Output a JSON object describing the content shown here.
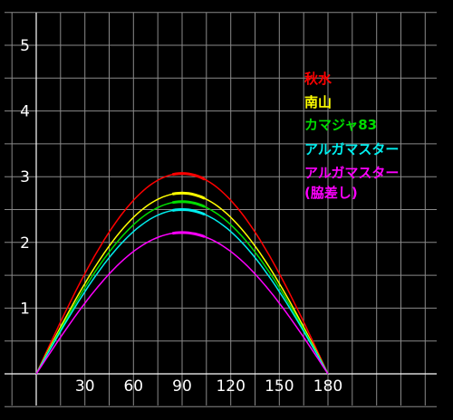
{
  "chart_data": {
    "type": "line",
    "title": "",
    "xlabel": "",
    "ylabel": "",
    "xlim": [
      0,
      180
    ],
    "ylim": [
      0,
      5
    ],
    "x_ticks": [
      {
        "value": 30,
        "label": "30"
      },
      {
        "value": 60,
        "label": "60"
      },
      {
        "value": 90,
        "label": "90"
      },
      {
        "value": 120,
        "label": "120"
      },
      {
        "value": 150,
        "label": "150"
      },
      {
        "value": 180,
        "label": "180"
      }
    ],
    "y_ticks": [
      {
        "value": 1,
        "label": "1"
      },
      {
        "value": 2,
        "label": "2"
      },
      {
        "value": 3,
        "label": "3"
      },
      {
        "value": 4,
        "label": "4"
      },
      {
        "value": 5,
        "label": "5"
      }
    ],
    "grid": true,
    "legend_position": "right",
    "x": [
      0,
      10,
      20,
      30,
      40,
      50,
      60,
      70,
      80,
      90,
      100,
      110,
      120,
      130,
      140,
      150,
      160,
      170,
      180
    ],
    "series": [
      {
        "name": "秋水",
        "color": "#ff0000",
        "peak": 3.05,
        "values": [
          0,
          0.53,
          1.04,
          1.53,
          1.96,
          2.34,
          2.64,
          2.87,
          3.0,
          3.05,
          3.0,
          2.87,
          2.64,
          2.34,
          1.96,
          1.53,
          1.04,
          0.53,
          0
        ]
      },
      {
        "name": "南山",
        "color": "#ffff00",
        "peak": 2.75,
        "values": [
          0,
          0.48,
          0.94,
          1.38,
          1.77,
          2.11,
          2.38,
          2.58,
          2.71,
          2.75,
          2.71,
          2.58,
          2.38,
          2.11,
          1.77,
          1.38,
          0.94,
          0.48,
          0
        ]
      },
      {
        "name": "カマジャ83",
        "color": "#00dd00",
        "peak": 2.62,
        "values": [
          0,
          0.45,
          0.9,
          1.31,
          1.68,
          2.01,
          2.27,
          2.46,
          2.58,
          2.62,
          2.58,
          2.46,
          2.27,
          2.01,
          1.68,
          1.31,
          0.9,
          0.45,
          0
        ]
      },
      {
        "name": "アルガマスター",
        "color": "#00eeee",
        "peak": 2.5,
        "values": [
          0,
          0.43,
          0.86,
          1.25,
          1.61,
          1.92,
          2.17,
          2.35,
          2.46,
          2.5,
          2.46,
          2.35,
          2.17,
          1.92,
          1.61,
          1.25,
          0.86,
          0.43,
          0
        ]
      },
      {
        "name": "アルガマスター(脇差し)",
        "color": "#ff00ff",
        "peak": 2.15,
        "values": [
          0,
          0.37,
          0.74,
          1.08,
          1.38,
          1.65,
          1.86,
          2.02,
          2.12,
          2.15,
          2.12,
          2.02,
          1.86,
          1.65,
          1.38,
          1.08,
          0.74,
          0.37,
          0
        ]
      }
    ],
    "legend": [
      {
        "line1": "秋水",
        "line2": "",
        "color": "#ff0000"
      },
      {
        "line1": "南山",
        "line2": "",
        "color": "#ffff00"
      },
      {
        "line1": "カマジャ83",
        "line2": "",
        "color": "#00dd00"
      },
      {
        "line1": "アルガマスター",
        "line2": "",
        "color": "#00eeee"
      },
      {
        "line1": "アルガマスター",
        "line2": "(脇差し)",
        "color": "#ff00ff"
      }
    ]
  }
}
